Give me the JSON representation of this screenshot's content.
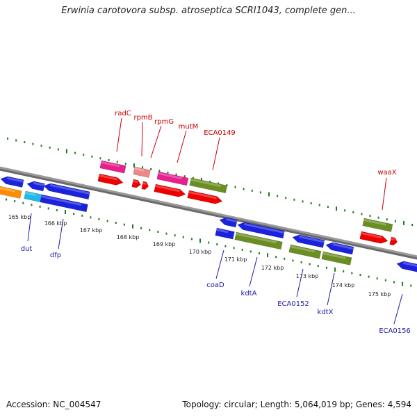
{
  "title": "Erwinia carotovora subsp. atroseptica SCRI1043, complete gen...",
  "footer": {
    "accession": "Accession: NC_004547",
    "summary": "Topology: circular; Length: 5,064,019 bp; Genes: 4,594"
  },
  "colors": {
    "backbone": "#8a8a8a",
    "tick": "#1f7a1f",
    "label_top": "#cc0000",
    "label_bottom": "#1a1aa6",
    "magenta": "#e6208c",
    "pink": "#ee8888",
    "red": "#ee0000",
    "olive": "#6b8e23",
    "blue": "#1a22dd",
    "cyan": "#22b8e8",
    "orange": "#ff8c00"
  },
  "kbp_labels": [
    "165 kbp",
    "166 kbp",
    "167 kbp",
    "168 kbp",
    "169 kbp",
    "170 kbp",
    "171 kbp",
    "172 kbp",
    "173 kbp",
    "174 kbp",
    "175 kbp"
  ],
  "top_genes": [
    "radC",
    "rpmB",
    "rpmG",
    "mutM",
    "ECA0149",
    "waaX"
  ],
  "bottom_genes": [
    "dut",
    "dfp",
    "coaD",
    "kdtA",
    "ECA0152",
    "kdtX",
    "ECA0156"
  ]
}
